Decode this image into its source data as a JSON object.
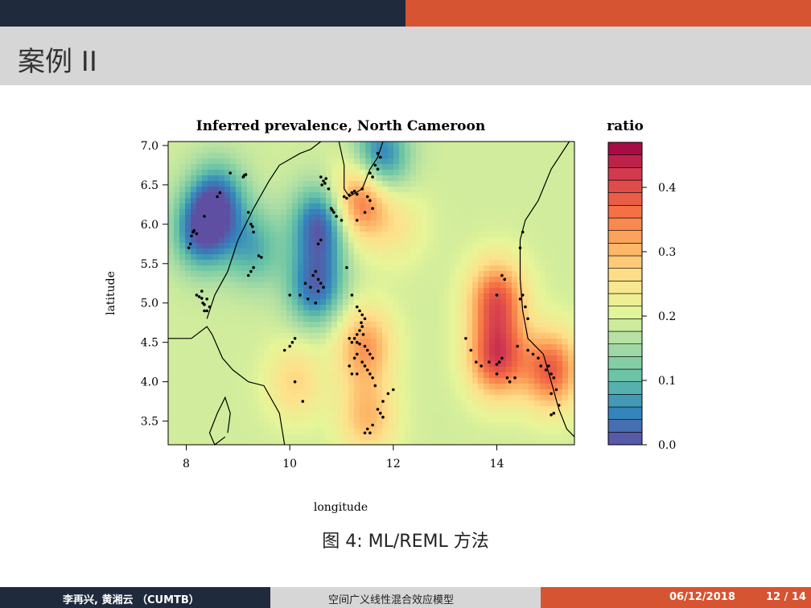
{
  "slide": {
    "title": "案例 II",
    "caption": "图 4: ML/REML 方法",
    "footer": {
      "authors": "李再兴, 黄湘云 （CUMTB）",
      "topic": "空间广义线性混合效应模型",
      "date": "06/12/2018",
      "page": "12 / 14"
    }
  },
  "colors": {
    "dark": "#1f2a3c",
    "accent": "#d65431",
    "gray": "#d6d6d6",
    "palette": [
      "#5e4fa2",
      "#3288bd",
      "#66c2a5",
      "#abdda4",
      "#e6f598",
      "#fee08b",
      "#fdae61",
      "#f46d43",
      "#d53e4f",
      "#9e0142"
    ]
  },
  "chart_data": {
    "type": "heatmap",
    "title": "Inferred prevalence, North Cameroon",
    "xlabel": "longitude",
    "ylabel": "latitude",
    "xlim": [
      7.65,
      15.5
    ],
    "ylim": [
      3.2,
      7.05
    ],
    "xticks": [
      8,
      10,
      12,
      14
    ],
    "yticks": [
      3.5,
      4.0,
      4.5,
      5.0,
      5.5,
      6.0,
      6.5,
      7.0
    ],
    "legend": {
      "title": "ratio",
      "range": [
        0.0,
        0.47
      ],
      "ticks": [
        0.0,
        0.1,
        0.2,
        0.3,
        0.4
      ],
      "placement": "right"
    },
    "surface_peaks": [
      {
        "x": 8.3,
        "y": 5.9,
        "value": 0.03
      },
      {
        "x": 8.6,
        "y": 6.3,
        "value": 0.04
      },
      {
        "x": 10.6,
        "y": 6.0,
        "value": 0.01
      },
      {
        "x": 10.5,
        "y": 5.2,
        "value": 0.03
      },
      {
        "x": 11.75,
        "y": 6.85,
        "value": 0.03
      },
      {
        "x": 9.3,
        "y": 5.7,
        "value": 0.09
      },
      {
        "x": 11.35,
        "y": 6.3,
        "value": 0.38
      },
      {
        "x": 11.45,
        "y": 4.45,
        "value": 0.33
      },
      {
        "x": 11.5,
        "y": 3.55,
        "value": 0.3
      },
      {
        "x": 14.0,
        "y": 5.05,
        "value": 0.38
      },
      {
        "x": 14.0,
        "y": 4.3,
        "value": 0.4
      },
      {
        "x": 15.05,
        "y": 4.15,
        "value": 0.38
      },
      {
        "x": 10.1,
        "y": 4.0,
        "value": 0.27
      },
      {
        "x": 12.1,
        "y": 6.0,
        "value": 0.24
      }
    ],
    "points": [
      [
        8.05,
        5.7
      ],
      [
        8.08,
        5.75
      ],
      [
        8.1,
        5.85
      ],
      [
        8.13,
        5.9
      ],
      [
        8.15,
        5.92
      ],
      [
        8.2,
        5.88
      ],
      [
        8.35,
        6.1
      ],
      [
        8.6,
        6.35
      ],
      [
        8.65,
        6.4
      ],
      [
        8.85,
        6.65
      ],
      [
        9.1,
        6.6
      ],
      [
        9.12,
        6.62
      ],
      [
        9.15,
        6.63
      ],
      [
        9.2,
        6.15
      ],
      [
        9.25,
        6.0
      ],
      [
        9.28,
        5.97
      ],
      [
        9.3,
        5.9
      ],
      [
        9.4,
        5.6
      ],
      [
        9.45,
        5.58
      ],
      [
        9.2,
        5.35
      ],
      [
        9.25,
        5.4
      ],
      [
        9.3,
        5.45
      ],
      [
        8.2,
        5.1
      ],
      [
        8.25,
        5.08
      ],
      [
        8.3,
        5.06
      ],
      [
        8.32,
        5.0
      ],
      [
        8.35,
        4.98
      ],
      [
        8.3,
        5.15
      ],
      [
        8.4,
        5.05
      ],
      [
        8.45,
        4.95
      ],
      [
        8.35,
        4.9
      ],
      [
        8.4,
        4.9
      ],
      [
        10.6,
        6.6
      ],
      [
        10.65,
        6.55
      ],
      [
        10.7,
        6.58
      ],
      [
        10.62,
        6.5
      ],
      [
        10.68,
        6.52
      ],
      [
        10.75,
        6.45
      ],
      [
        10.8,
        6.2
      ],
      [
        10.85,
        6.15
      ],
      [
        10.9,
        6.1
      ],
      [
        10.82,
        6.18
      ],
      [
        10.55,
        5.75
      ],
      [
        10.6,
        5.8
      ],
      [
        10.5,
        5.4
      ],
      [
        10.45,
        5.35
      ],
      [
        10.55,
        5.3
      ],
      [
        10.6,
        5.25
      ],
      [
        10.65,
        5.2
      ],
      [
        10.55,
        5.15
      ],
      [
        10.4,
        5.2
      ],
      [
        10.3,
        5.25
      ],
      [
        10.35,
        5.05
      ],
      [
        10.5,
        5.0
      ],
      [
        10.2,
        5.1
      ],
      [
        10.0,
        5.1
      ],
      [
        11.05,
        6.35
      ],
      [
        11.1,
        6.33
      ],
      [
        11.15,
        6.37
      ],
      [
        11.2,
        6.4
      ],
      [
        11.25,
        6.42
      ],
      [
        11.3,
        6.38
      ],
      [
        11.4,
        6.45
      ],
      [
        11.5,
        6.35
      ],
      [
        11.55,
        6.3
      ],
      [
        11.6,
        6.2
      ],
      [
        11.45,
        6.15
      ],
      [
        11.3,
        6.05
      ],
      [
        11.0,
        6.05
      ],
      [
        11.7,
        6.9
      ],
      [
        11.75,
        6.85
      ],
      [
        11.65,
        6.75
      ],
      [
        11.6,
        6.6
      ],
      [
        11.7,
        6.7
      ],
      [
        11.55,
        6.65
      ],
      [
        11.1,
        5.45
      ],
      [
        11.2,
        5.1
      ],
      [
        11.3,
        4.95
      ],
      [
        11.35,
        4.9
      ],
      [
        11.4,
        4.85
      ],
      [
        11.45,
        4.8
      ],
      [
        11.38,
        4.75
      ],
      [
        11.4,
        4.7
      ],
      [
        11.3,
        4.6
      ],
      [
        11.35,
        4.65
      ],
      [
        11.42,
        4.6
      ],
      [
        11.15,
        4.55
      ],
      [
        11.2,
        4.5
      ],
      [
        11.25,
        4.55
      ],
      [
        11.3,
        4.5
      ],
      [
        11.35,
        4.48
      ],
      [
        11.45,
        4.45
      ],
      [
        11.5,
        4.4
      ],
      [
        11.55,
        4.35
      ],
      [
        11.6,
        4.3
      ],
      [
        11.3,
        4.35
      ],
      [
        11.25,
        4.3
      ],
      [
        11.4,
        4.25
      ],
      [
        11.45,
        4.2
      ],
      [
        11.5,
        4.15
      ],
      [
        11.55,
        4.1
      ],
      [
        11.2,
        4.1
      ],
      [
        11.3,
        4.1
      ],
      [
        11.15,
        4.2
      ],
      [
        11.6,
        4.05
      ],
      [
        11.65,
        3.95
      ],
      [
        10.1,
        4.55
      ],
      [
        10.05,
        4.5
      ],
      [
        10.0,
        4.45
      ],
      [
        9.9,
        4.4
      ],
      [
        10.1,
        4.0
      ],
      [
        10.25,
        3.75
      ],
      [
        11.9,
        3.85
      ],
      [
        12.0,
        3.9
      ],
      [
        11.8,
        3.75
      ],
      [
        11.7,
        3.65
      ],
      [
        11.75,
        3.6
      ],
      [
        11.8,
        3.55
      ],
      [
        11.6,
        3.45
      ],
      [
        11.5,
        3.4
      ],
      [
        11.55,
        3.35
      ],
      [
        11.45,
        3.35
      ],
      [
        13.4,
        4.55
      ],
      [
        13.5,
        4.4
      ],
      [
        13.6,
        4.25
      ],
      [
        13.7,
        4.2
      ],
      [
        13.85,
        4.25
      ],
      [
        14.0,
        4.22
      ],
      [
        14.05,
        4.25
      ],
      [
        14.1,
        4.3
      ],
      [
        14.2,
        4.05
      ],
      [
        14.25,
        4.0
      ],
      [
        14.35,
        4.05
      ],
      [
        14.0,
        4.1
      ],
      [
        14.0,
        5.1
      ],
      [
        14.1,
        5.35
      ],
      [
        14.15,
        5.3
      ],
      [
        14.5,
        5.1
      ],
      [
        14.45,
        5.05
      ],
      [
        14.55,
        4.95
      ],
      [
        14.6,
        4.8
      ],
      [
        14.4,
        4.45
      ],
      [
        14.6,
        4.4
      ],
      [
        14.7,
        4.35
      ],
      [
        14.8,
        4.3
      ],
      [
        14.85,
        4.2
      ],
      [
        14.95,
        4.15
      ],
      [
        15.0,
        4.2
      ],
      [
        15.05,
        4.1
      ],
      [
        15.1,
        4.05
      ],
      [
        15.15,
        3.9
      ],
      [
        15.05,
        3.85
      ],
      [
        15.2,
        3.7
      ],
      [
        15.1,
        3.6
      ],
      [
        15.05,
        3.58
      ],
      [
        14.45,
        5.7
      ],
      [
        14.5,
        5.9
      ]
    ]
  }
}
